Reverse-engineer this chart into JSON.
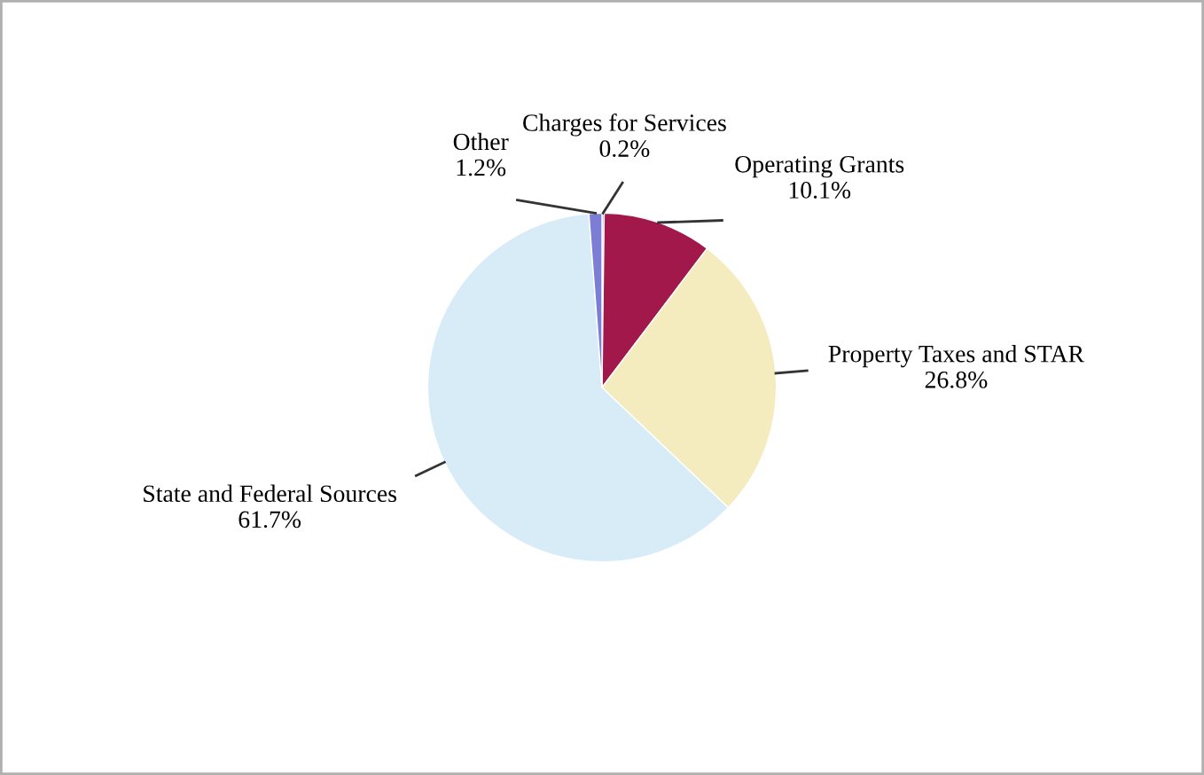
{
  "chart_data": {
    "type": "pie",
    "categories": [
      "Charges for Services",
      "Operating Grants",
      "Property Taxes and STAR",
      "State and Federal Sources",
      "Other"
    ],
    "values": [
      0.2,
      10.1,
      26.8,
      61.7,
      1.2
    ],
    "value_labels": [
      "0.2%",
      "10.1%",
      "26.8%",
      "61.7%",
      "1.2%"
    ],
    "colors": [
      "#9a86cc",
      "#a3184a",
      "#f4ecbe",
      "#d8ecf8",
      "#7c7ed6"
    ],
    "legend": false
  }
}
